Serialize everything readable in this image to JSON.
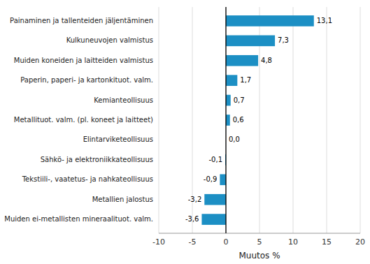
{
  "chart_data": {
    "type": "bar",
    "orientation": "horizontal",
    "categories": [
      "Muiden ei-metallisten mineraalituot. valm.",
      "Metallien jalostus",
      "Tekstiili-, vaatetus- ja nahkateollisuus",
      "Sähkö- ja elektroniikkateollisuus",
      "Elintarviketeollisuus",
      "Metallituot. valm. (pl. koneet ja laitteet)",
      "Kemianteollisuus",
      "Paperin, paperi- ja kartonkituot. valm.",
      "Muiden koneiden ja laitteiden valmistus",
      "Kulkuneuvojen valmistus",
      "Painaminen ja tallenteiden jäljentäminen"
    ],
    "values": [
      -3.6,
      -3.2,
      -0.9,
      -0.1,
      0.0,
      0.6,
      0.7,
      1.7,
      4.8,
      7.3,
      13.1
    ],
    "value_labels": [
      "-3,6",
      "-3,2",
      "-0,9",
      "-0,1",
      "0,0",
      "0,6",
      "0,7",
      "1,7",
      "4,8",
      "7,3",
      "13,1"
    ],
    "data_labels": true,
    "color": "#1c8fc4",
    "xlabel": "Muutos %",
    "xlim": [
      -10,
      20
    ],
    "xticks": [
      -10,
      -5,
      0,
      5,
      10,
      15,
      20
    ],
    "grid": true
  }
}
